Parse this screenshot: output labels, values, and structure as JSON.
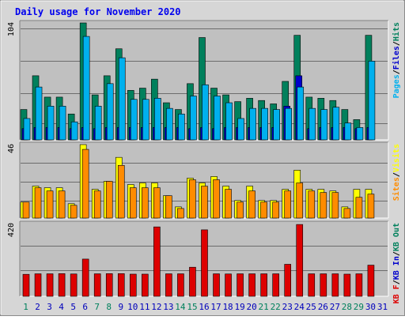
{
  "chart_data": {
    "type": "bar",
    "title": "Daily usage for November 2020",
    "x": [
      1,
      2,
      3,
      4,
      5,
      6,
      7,
      8,
      9,
      10,
      11,
      12,
      13,
      14,
      15,
      16,
      17,
      18,
      19,
      20,
      21,
      22,
      23,
      24,
      25,
      26,
      27,
      28,
      29,
      30,
      31
    ],
    "weekend_days": [
      1,
      7,
      8,
      14,
      15,
      21,
      22,
      28,
      29
    ],
    "panels": [
      {
        "id": "top",
        "ylabel_max": "104",
        "ymax": 104,
        "legend": [
          {
            "text": "Pages",
            "color": "#00b0ee"
          },
          {
            "text": "/",
            "color": "#000000"
          },
          {
            "text": "Files",
            "color": "#0000cc"
          },
          {
            "text": "/",
            "color": "#000000"
          },
          {
            "text": "Hits",
            "color": "#00805c"
          }
        ],
        "series": [
          {
            "name": "Hits",
            "color": "#00805c",
            "values": [
              27,
              57,
              38,
              38,
              23,
              104,
              40,
              57,
              81,
              44,
              46,
              54,
              33,
              27,
              50,
              91,
              46,
              40,
              34,
              37,
              35,
              32,
              52,
              93,
              38,
              37,
              35,
              27,
              18,
              93
            ]
          },
          {
            "name": "Files",
            "color": "#0000cc",
            "values": [
              10,
              11,
              11,
              11,
              10,
              11,
              10,
              11,
              11,
              11,
              11,
              11,
              11,
              11,
              10,
              11,
              10,
              11,
              11,
              11,
              11,
              11,
              30,
              57,
              10,
              11,
              11,
              11,
              10,
              11
            ]
          },
          {
            "name": "Pages",
            "color": "#00b0ee",
            "values": [
              19,
              47,
              30,
              30,
              16,
              92,
              30,
              50,
              73,
              36,
              36,
              37,
              28,
              23,
              39,
              49,
              39,
              33,
              19,
              28,
              28,
              27,
              28,
              47,
              28,
              27,
              29,
              15,
              11,
              70
            ]
          }
        ]
      },
      {
        "id": "middle",
        "ylabel_max": "46",
        "ymax": 46,
        "legend": [
          {
            "text": "Sites",
            "color": "#ff8c00"
          },
          {
            "text": "/",
            "color": "#000000"
          },
          {
            "text": "Visits",
            "color": "#ffff00"
          }
        ],
        "series": [
          {
            "name": "Visits",
            "color": "#ffff00",
            "values": [
              10,
              20,
              19,
              19,
              9,
              46,
              18,
              23,
              38,
              21,
              22,
              22,
              14,
              7,
              25,
              22,
              26,
              20,
              11,
              20,
              11,
              11,
              18,
              30,
              18,
              18,
              17,
              7,
              18,
              18
            ]
          },
          {
            "name": "Sites",
            "color": "#ff8c00",
            "values": [
              10,
              19,
              17,
              17,
              8,
              43,
              17,
              23,
              33,
              19,
              19,
              19,
              14,
              6,
              24,
              20,
              24,
              18,
              10,
              17,
              10,
              10,
              17,
              22,
              17,
              16,
              16,
              6,
              13,
              15
            ]
          }
        ]
      },
      {
        "id": "bottom",
        "ylabel_max": "420",
        "ymax": 420,
        "legend": [
          {
            "text": "KB F",
            "color": "#dd0000"
          },
          {
            "text": "/",
            "color": "#000000"
          },
          {
            "text": "KB In",
            "color": "#0000cc"
          },
          {
            "text": "/",
            "color": "#000000"
          },
          {
            "text": "KB Out",
            "color": "#00805c"
          }
        ],
        "series": [
          {
            "name": "KB F",
            "color": "#dd0000",
            "values": [
              127,
              130,
              130,
              131,
              129,
              215,
              130,
              131,
              131,
              128,
              128,
              401,
              130,
              130,
              168,
              384,
              130,
              129,
              130,
              130,
              130,
              130,
              185,
              415,
              130,
              130,
              130,
              128,
              130,
              180
            ]
          }
        ]
      }
    ],
    "colors": {
      "plot_bg": "#c0c0c0",
      "frame_bg": "#d6d6d6",
      "title": "#0000ee",
      "weekday_label": "#0000bb",
      "weekend_label": "#00805c"
    }
  }
}
